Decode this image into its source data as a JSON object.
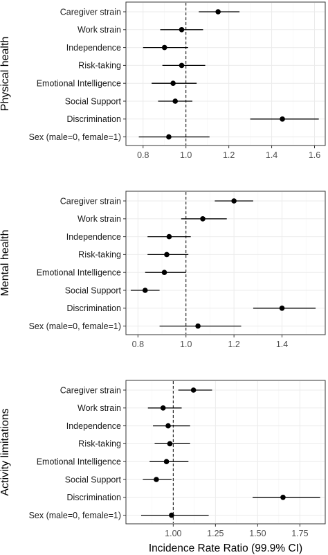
{
  "chart_data": [
    {
      "type": "forest",
      "ylabel": "Physical health",
      "xlabel": "",
      "categories": [
        "Caregiver strain",
        "Work strain",
        "Independence",
        "Risk-taking",
        "Emotional Intelligence",
        "Social Support",
        "Discrimination",
        "Sex (male=0, female=1)"
      ],
      "estimates": [
        1.15,
        0.98,
        0.9,
        0.98,
        0.94,
        0.95,
        1.45,
        0.92
      ],
      "ci_low": [
        1.06,
        0.88,
        0.8,
        0.89,
        0.84,
        0.87,
        1.3,
        0.78
      ],
      "ci_high": [
        1.25,
        1.08,
        1.01,
        1.09,
        1.05,
        1.03,
        1.62,
        1.11
      ],
      "reference": 1.0,
      "xlim": [
        0.72,
        1.65
      ],
      "xticks": [
        0.8,
        1.0,
        1.2,
        1.4,
        1.6
      ],
      "xtick_labels": [
        "0.8",
        "1.0",
        "1.2",
        "1.4",
        "1.6"
      ],
      "grid": true
    },
    {
      "type": "forest",
      "ylabel": "Mental health",
      "xlabel": "",
      "categories": [
        "Caregiver strain",
        "Work strain",
        "Independence",
        "Risk-taking",
        "Emotional Intelligence",
        "Social Support",
        "Discrimination",
        "Sex (male=0, female=1)"
      ],
      "estimates": [
        1.2,
        1.07,
        0.93,
        0.92,
        0.91,
        0.83,
        1.4,
        1.05
      ],
      "ci_low": [
        1.12,
        0.98,
        0.84,
        0.84,
        0.83,
        0.77,
        1.28,
        0.89
      ],
      "ci_high": [
        1.28,
        1.17,
        1.02,
        1.01,
        1.0,
        0.89,
        1.54,
        1.23
      ],
      "reference": 1.0,
      "xlim": [
        0.75,
        1.58
      ],
      "xticks": [
        0.8,
        1.0,
        1.2,
        1.4
      ],
      "xtick_labels": [
        "0.8",
        "1.0",
        "1.2",
        "1.4"
      ],
      "grid": true
    },
    {
      "type": "forest",
      "ylabel": "Activity limitations",
      "xlabel": "Incidence Rate Ratio (99.9% CI)",
      "categories": [
        "Caregiver strain",
        "Work strain",
        "Independence",
        "Risk-taking",
        "Emotional Intelligence",
        "Social Support",
        "Discrimination",
        "Sex (male=0, female=1)"
      ],
      "estimates": [
        1.12,
        0.94,
        0.97,
        0.98,
        0.96,
        0.9,
        1.65,
        0.99
      ],
      "ci_low": [
        1.03,
        0.85,
        0.88,
        0.89,
        0.86,
        0.82,
        1.47,
        0.81
      ],
      "ci_high": [
        1.23,
        1.05,
        1.1,
        1.1,
        1.09,
        0.99,
        1.87,
        1.21
      ],
      "reference": 1.0,
      "xlim": [
        0.72,
        1.9
      ],
      "xticks": [
        1.0,
        1.25,
        1.5,
        1.75
      ],
      "xtick_labels": [
        "1.00",
        "1.25",
        "1.50",
        "1.75"
      ],
      "grid": true
    }
  ]
}
